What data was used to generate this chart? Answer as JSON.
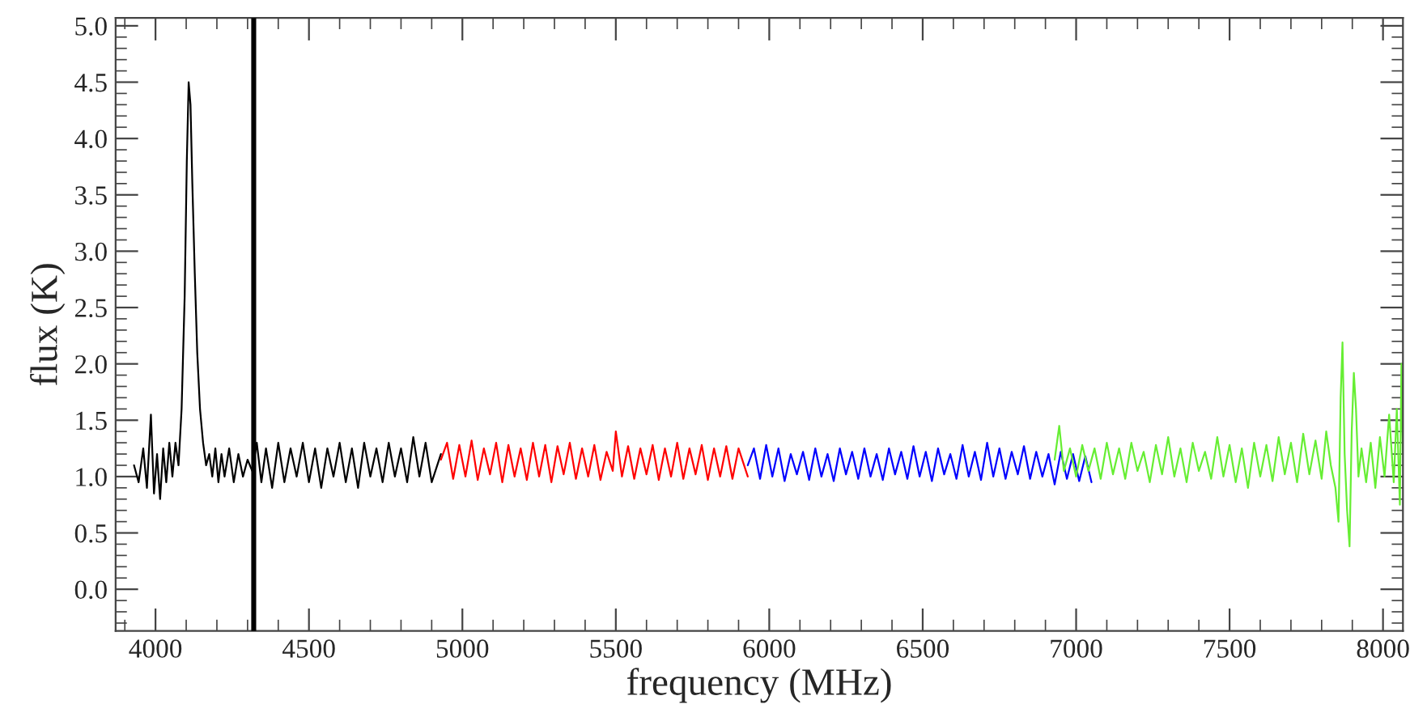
{
  "chart_data": {
    "type": "line",
    "xlabel": "frequency (MHz)",
    "ylabel": "flux (K)",
    "xlim": [
      3870,
      8065
    ],
    "ylim": [
      -0.37,
      5.07
    ],
    "xticks": [
      4000,
      4500,
      5000,
      5500,
      6000,
      6500,
      7000,
      7500,
      8000
    ],
    "yticks": [
      {
        "value": 0,
        "label": "0.0"
      },
      {
        "value": 0.5,
        "label": "0.5"
      },
      {
        "value": 1,
        "label": "1.0"
      },
      {
        "value": 1.5,
        "label": "1.5"
      },
      {
        "value": 2,
        "label": "2.0"
      },
      {
        "value": 2.5,
        "label": "2.5"
      },
      {
        "value": 3,
        "label": "3.0"
      },
      {
        "value": 3.5,
        "label": "3.5"
      },
      {
        "value": 4,
        "label": "4.0"
      },
      {
        "value": 4.5,
        "label": "4.5"
      },
      {
        "value": 5,
        "label": "5.0"
      }
    ],
    "grid": false,
    "legend": false,
    "marker": "none",
    "line_style": "solid",
    "ref_lines": [
      {
        "axis": "x",
        "value": 4320,
        "color": "#000000"
      }
    ],
    "series": [
      {
        "color": "#000000",
        "x": [
          3930,
          3945,
          3960,
          3972,
          3985,
          3995,
          4005,
          4015,
          4025,
          4035,
          4045,
          4055,
          4065,
          4075,
          4085,
          4095,
          4102,
          4108,
          4114,
          4120,
          4128,
          4136,
          4145,
          4155,
          4165,
          4175,
          4185,
          4195,
          4205,
          4215,
          4225,
          4240,
          4255,
          4270,
          4285,
          4300,
          4315,
          4330,
          4345,
          4360,
          4380,
          4400,
          4420,
          4440,
          4460,
          4480,
          4500,
          4520,
          4540,
          4560,
          4580,
          4600,
          4620,
          4640,
          4660,
          4680,
          4700,
          4720,
          4740,
          4760,
          4780,
          4800,
          4820,
          4840,
          4860,
          4880,
          4900,
          4930
        ],
        "values": [
          1.1,
          0.95,
          1.25,
          0.9,
          1.55,
          0.85,
          1.2,
          0.8,
          1.25,
          0.95,
          1.3,
          1.0,
          1.3,
          1.1,
          1.6,
          2.6,
          3.8,
          4.5,
          4.3,
          3.6,
          2.8,
          2.1,
          1.6,
          1.3,
          1.1,
          1.2,
          1.0,
          1.25,
          0.95,
          1.2,
          1.0,
          1.25,
          0.95,
          1.2,
          1.0,
          1.15,
          1.05,
          1.3,
          0.95,
          1.25,
          0.9,
          1.3,
          0.95,
          1.25,
          1.0,
          1.3,
          0.95,
          1.25,
          0.9,
          1.25,
          1.0,
          1.3,
          0.95,
          1.25,
          0.9,
          1.3,
          1.0,
          1.25,
          0.95,
          1.3,
          1.0,
          1.25,
          0.95,
          1.35,
          1.0,
          1.3,
          0.95,
          1.2
        ]
      },
      {
        "color": "#ff0000",
        "x": [
          4930,
          4950,
          4970,
          4990,
          5010,
          5030,
          5050,
          5070,
          5090,
          5110,
          5130,
          5150,
          5170,
          5190,
          5210,
          5230,
          5250,
          5270,
          5290,
          5310,
          5330,
          5350,
          5370,
          5390,
          5410,
          5430,
          5450,
          5470,
          5490,
          5500,
          5520,
          5540,
          5560,
          5580,
          5600,
          5620,
          5640,
          5660,
          5680,
          5700,
          5720,
          5740,
          5760,
          5780,
          5800,
          5820,
          5840,
          5860,
          5880,
          5900,
          5930
        ],
        "values": [
          1.15,
          1.3,
          0.98,
          1.28,
          1.0,
          1.32,
          0.97,
          1.25,
          1.02,
          1.3,
          0.95,
          1.28,
          1.0,
          1.25,
          0.97,
          1.3,
          1.0,
          1.28,
          0.95,
          1.27,
          1.02,
          1.3,
          0.98,
          1.25,
          1.0,
          1.28,
          0.97,
          1.22,
          1.05,
          1.4,
          1.0,
          1.27,
          0.98,
          1.25,
          1.02,
          1.28,
          0.97,
          1.25,
          1.0,
          1.3,
          0.98,
          1.25,
          1.02,
          1.28,
          0.97,
          1.25,
          1.0,
          1.27,
          0.98,
          1.25,
          1.0
        ]
      },
      {
        "color": "#0000ff",
        "x": [
          5930,
          5950,
          5970,
          5990,
          6010,
          6030,
          6050,
          6070,
          6090,
          6110,
          6130,
          6150,
          6170,
          6190,
          6210,
          6230,
          6250,
          6270,
          6290,
          6310,
          6330,
          6350,
          6370,
          6390,
          6410,
          6430,
          6450,
          6470,
          6490,
          6510,
          6530,
          6550,
          6570,
          6590,
          6610,
          6630,
          6650,
          6670,
          6690,
          6710,
          6730,
          6750,
          6770,
          6790,
          6810,
          6830,
          6850,
          6870,
          6890,
          6910,
          6930,
          6950,
          6970,
          6990,
          7010,
          7030,
          7050
        ],
        "values": [
          1.1,
          1.25,
          0.98,
          1.28,
          1.0,
          1.25,
          0.96,
          1.2,
          1.02,
          1.22,
          0.97,
          1.25,
          1.0,
          1.2,
          0.96,
          1.25,
          1.02,
          1.22,
          0.98,
          1.25,
          1.0,
          1.2,
          0.97,
          1.25,
          1.02,
          1.22,
          0.98,
          1.27,
          1.0,
          1.22,
          0.96,
          1.25,
          1.02,
          1.2,
          0.98,
          1.28,
          1.0,
          1.22,
          0.97,
          1.3,
          1.0,
          1.25,
          0.98,
          1.22,
          1.02,
          1.27,
          0.98,
          1.22,
          1.0,
          1.2,
          0.93,
          1.22,
          0.98,
          1.2,
          0.96,
          1.18,
          0.95
        ]
      },
      {
        "color": "#66ee33",
        "x": [
          6930,
          6945,
          6960,
          6980,
          7000,
          7020,
          7040,
          7060,
          7080,
          7100,
          7120,
          7140,
          7160,
          7180,
          7200,
          7220,
          7240,
          7260,
          7280,
          7300,
          7320,
          7340,
          7360,
          7380,
          7400,
          7420,
          7440,
          7460,
          7480,
          7500,
          7520,
          7540,
          7560,
          7580,
          7600,
          7620,
          7640,
          7660,
          7680,
          7700,
          7720,
          7740,
          7760,
          7780,
          7800,
          7815,
          7830,
          7845,
          7855,
          7862,
          7868,
          7875,
          7883,
          7891,
          7898,
          7905,
          7912,
          7920,
          7930,
          7945,
          7960,
          7975,
          7990,
          8005,
          8020,
          8035,
          8045,
          8055,
          8060,
          8065
        ],
        "values": [
          1.15,
          1.45,
          1.05,
          1.25,
          1.0,
          1.28,
          1.05,
          1.25,
          0.98,
          1.3,
          1.02,
          1.25,
          0.98,
          1.3,
          1.05,
          1.22,
          0.95,
          1.28,
          1.02,
          1.35,
          1.0,
          1.25,
          0.95,
          1.3,
          1.05,
          1.22,
          0.98,
          1.35,
          1.0,
          1.28,
          0.95,
          1.25,
          0.9,
          1.3,
          1.0,
          1.28,
          0.96,
          1.35,
          1.02,
          1.3,
          0.95,
          1.38,
          1.02,
          1.32,
          0.98,
          1.4,
          1.1,
          0.9,
          0.6,
          1.7,
          2.19,
          1.2,
          0.7,
          0.38,
          1.4,
          1.92,
          1.6,
          1.0,
          1.25,
          0.95,
          1.3,
          0.9,
          1.35,
          1.0,
          1.55,
          0.95,
          1.6,
          0.75,
          2.0,
          1.2
        ]
      }
    ]
  }
}
